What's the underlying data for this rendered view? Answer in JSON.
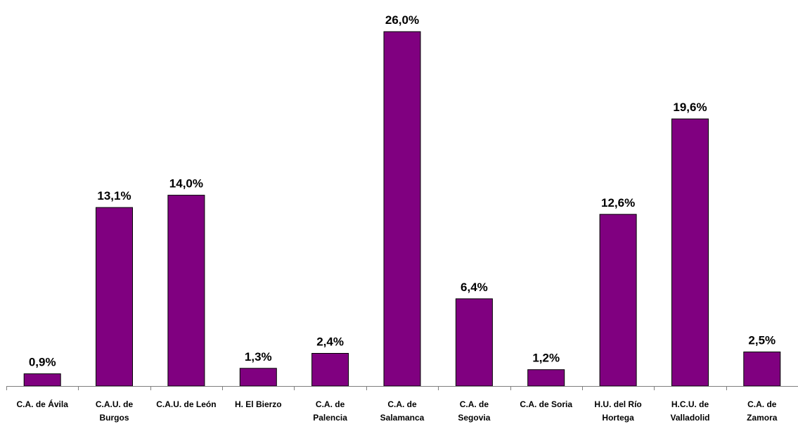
{
  "chart_data": {
    "type": "bar",
    "title": "",
    "xlabel": "",
    "ylabel": "",
    "categories": [
      [
        "C.A. de Ávila"
      ],
      [
        "C.A.U. de",
        "Burgos"
      ],
      [
        "C.A.U. de León"
      ],
      [
        "H. El Bierzo"
      ],
      [
        "C.A. de",
        "Palencia"
      ],
      [
        "C.A. de",
        "Salamanca"
      ],
      [
        "C.A. de",
        "Segovia"
      ],
      [
        "C.A. de Soria"
      ],
      [
        "H.U. del Río",
        "Hortega"
      ],
      [
        "H.C.U. de",
        "Valladolid"
      ],
      [
        "C.A. de",
        "Zamora"
      ]
    ],
    "values": [
      0.9,
      13.1,
      14.0,
      1.3,
      2.4,
      26.0,
      6.4,
      1.2,
      12.6,
      19.6,
      2.5
    ],
    "value_labels": [
      "0,9%",
      "13,1%",
      "14,0%",
      "1,3%",
      "2,4%",
      "26,0%",
      "6,4%",
      "1,2%",
      "12,6%",
      "19,6%",
      "2,5%"
    ],
    "ylim": [
      0,
      26.0
    ],
    "grid": false,
    "legend": "none",
    "colors": {
      "bar": "#800080",
      "axis": "#7f7f7f",
      "text": "#000000"
    }
  }
}
